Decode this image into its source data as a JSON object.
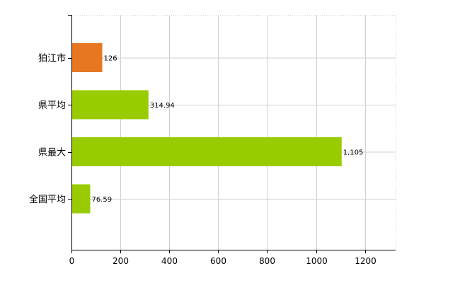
{
  "chart_data": {
    "type": "bar",
    "orientation": "horizontal",
    "categories": [
      "狛江市",
      "県平均",
      "県最大",
      "全国平均"
    ],
    "values": [
      126,
      314.94,
      1105,
      76.59
    ],
    "value_labels": [
      "126",
      "314.94",
      "1,105",
      "76.59"
    ],
    "bar_colors": [
      "#e87722",
      "#99cc00",
      "#99cc00",
      "#99cc00"
    ],
    "xlim": [
      0,
      1330
    ],
    "x_ticks": [
      0,
      200,
      400,
      600,
      800,
      1000,
      1200
    ],
    "x_tick_labels": [
      "0",
      "200",
      "400",
      "600",
      "800",
      "1000",
      "1200"
    ],
    "grid": true,
    "title": "",
    "xlabel": "",
    "ylabel": ""
  }
}
